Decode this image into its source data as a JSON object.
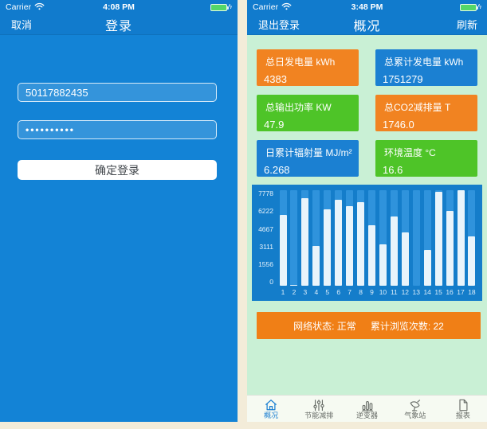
{
  "left_screen": {
    "status_bar": {
      "carrier": "Carrier",
      "time": "4:08 PM"
    },
    "nav": {
      "cancel_label": "取消",
      "title": "登录"
    },
    "form": {
      "username_value": "50117882435",
      "password_value": "••••••••••",
      "login_label": "确定登录"
    }
  },
  "right_screen": {
    "status_bar": {
      "carrier": "Carrier",
      "time": "3:48 PM"
    },
    "nav": {
      "logout_label": "退出登录",
      "title": "概况",
      "refresh_label": "刷新"
    },
    "cards": [
      {
        "label": "总日发电量  kWh",
        "value": "4383",
        "color": "#f18321"
      },
      {
        "label": "总累计发电量  kWh",
        "value": "1751279",
        "color": "#1b80d2"
      },
      {
        "label": "总输出功率  KW",
        "value": "47.9",
        "color": "#4ec428"
      },
      {
        "label": "总CO2减排量  T",
        "value": "1746.0",
        "color": "#f18321"
      },
      {
        "label": "日累计辐射量  MJ/m²",
        "value": "6.268",
        "color": "#1b80d2"
      },
      {
        "label": "环境温度  °C",
        "value": "16.6",
        "color": "#4ec428"
      }
    ],
    "banner": {
      "network_status": "网络状态: 正常",
      "visit_count": "累计浏览次数: 22",
      "color": "#f07f16"
    },
    "tabs": [
      {
        "label": "概况",
        "icon": "home-icon",
        "active": true
      },
      {
        "label": "节能减排",
        "icon": "sliders-icon",
        "active": false
      },
      {
        "label": "逆变器",
        "icon": "bar-chart-icon",
        "active": false
      },
      {
        "label": "气象站",
        "icon": "satellite-dish-icon",
        "active": false
      },
      {
        "label": "报表",
        "icon": "report-icon",
        "active": false
      }
    ]
  },
  "chart_data": {
    "type": "bar",
    "title": "",
    "x": [
      1,
      2,
      3,
      4,
      5,
      6,
      7,
      8,
      9,
      10,
      11,
      12,
      13,
      14,
      15,
      16,
      17,
      18
    ],
    "values": [
      5800,
      80,
      7100,
      3250,
      6200,
      7000,
      6500,
      6800,
      4900,
      3350,
      5650,
      4350,
      0,
      2950,
      7650,
      6100,
      7778,
      4000
    ],
    "yticks": [
      7778,
      6222,
      4667,
      3111,
      1556,
      0
    ],
    "ylim": [
      0,
      7778
    ],
    "grid": false,
    "legend": null,
    "panel_color": "#147dca",
    "track_color": "#2f93dc",
    "bar_color": "#e9f4fb"
  }
}
